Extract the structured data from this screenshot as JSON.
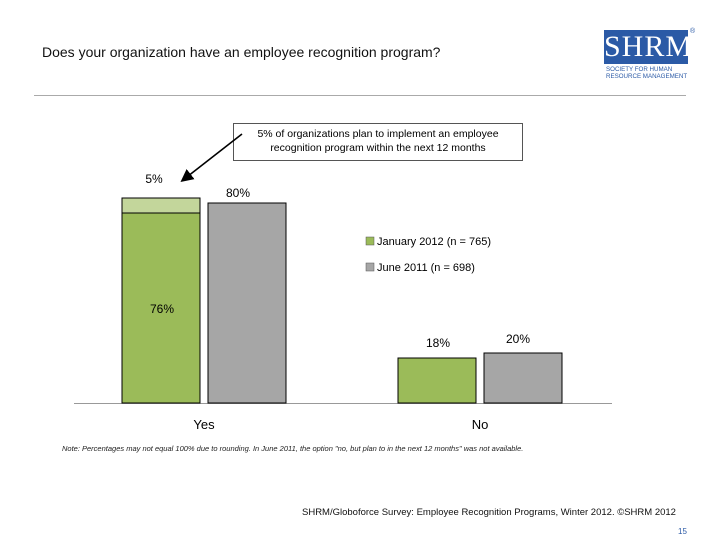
{
  "title": "Does your organization have an employee recognition program?",
  "logo": {
    "text": "SHRM",
    "registered": "®",
    "subtitle": "Society for Human Resource Management"
  },
  "callout": "5% of organizations plan to implement an employee recognition program within the next 12 months",
  "note": "Note: Percentages may not equal 100% due to rounding. In June 2011, the option \"no, but plan to in the next 12 months\" was not available.",
  "source": "SHRM/Globoforce Survey: Employee Recognition Programs, Winter 2012. ©SHRM 2012",
  "page_number": "15",
  "colors": {
    "jan2012": "#9bbb59",
    "jan2012_plan": "#c3d69b",
    "jun2011": "#a6a6a6",
    "bar_outline": "#000000",
    "brand": "#2b5aa6"
  },
  "chart_data": {
    "type": "bar",
    "stacked_first_series": true,
    "categories": [
      "Yes",
      "No"
    ],
    "series": [
      {
        "name": "January 2012 (n = 765)",
        "values": [
          76,
          18
        ],
        "stack_extra": [
          5,
          0
        ],
        "labels": [
          "76%",
          "18%"
        ],
        "extra_labels": [
          "5%",
          ""
        ]
      },
      {
        "name": "June 2011 (n = 698)",
        "values": [
          80,
          20
        ],
        "labels": [
          "80%",
          "20%"
        ]
      }
    ],
    "ylim": [
      0,
      85
    ],
    "legend": "right",
    "title": "",
    "xlabel": "",
    "ylabel": ""
  }
}
